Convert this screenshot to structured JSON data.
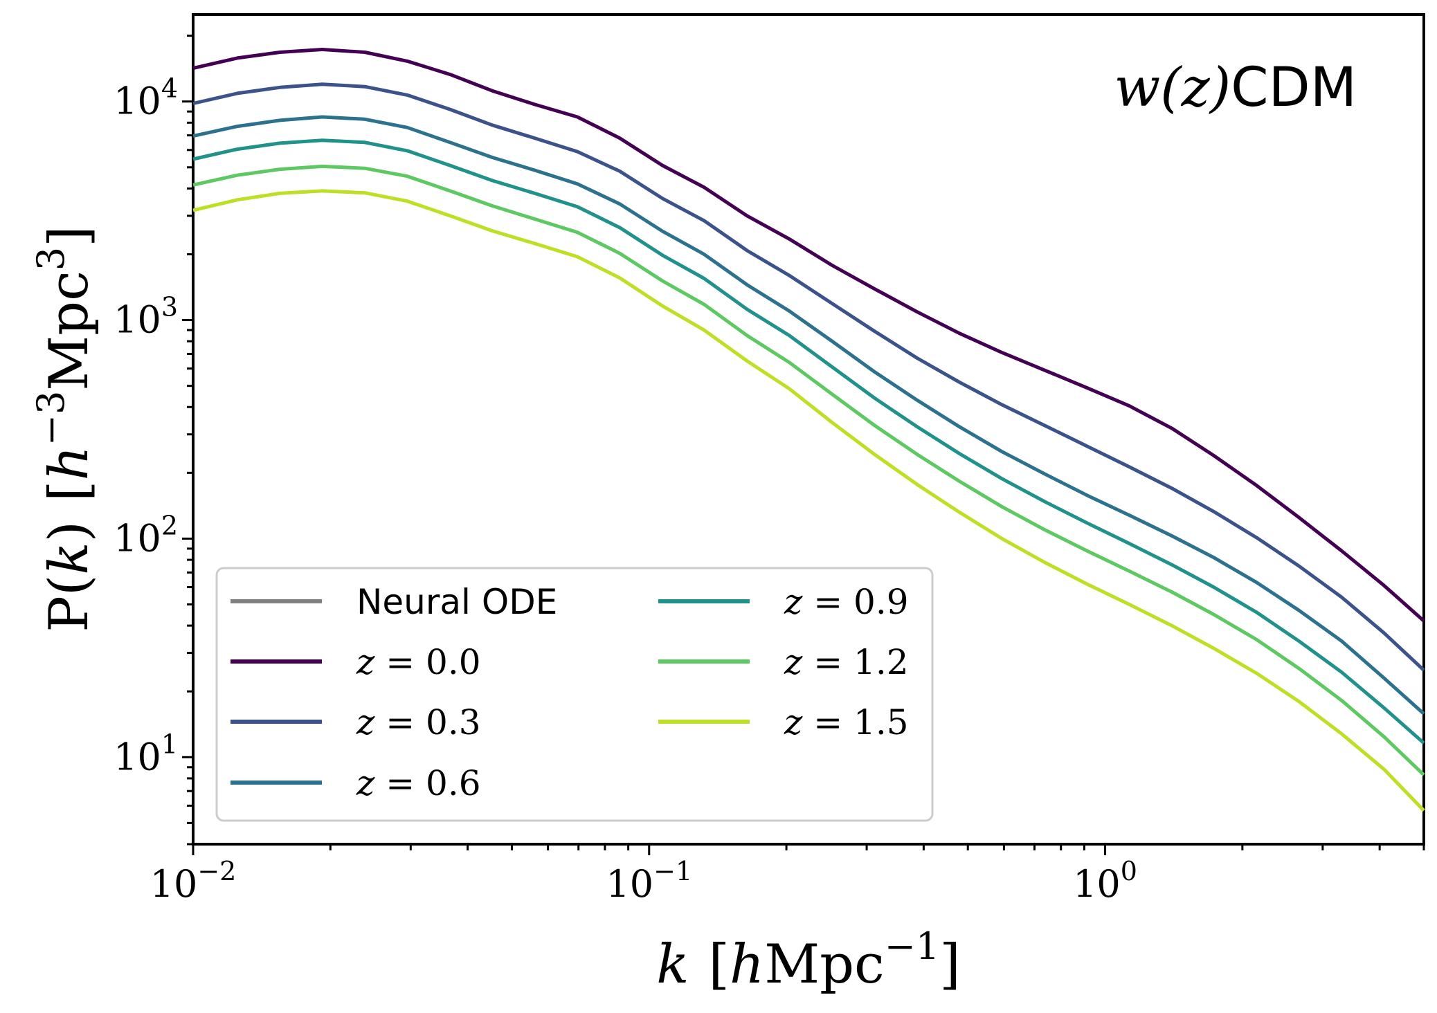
{
  "chart_data": {
    "type": "line",
    "title": "",
    "annotation": {
      "prefix": "w(z)",
      "suffix": "CDM"
    },
    "xlabel": {
      "var": "k",
      "open": "[",
      "unit_it": "h",
      "unit": "Mpc",
      "exp": "−1",
      "close": "]"
    },
    "ylabel": {
      "func": "P(",
      "var": "k",
      "func_close": ")",
      "open": "[",
      "unit_it": "h",
      "exp1": "−3",
      "unit": "Mpc",
      "exp2": "3",
      "close": "]"
    },
    "xscale": "log",
    "yscale": "log",
    "xlim": [
      0.01,
      5.0
    ],
    "ylim": [
      4.0,
      25000
    ],
    "x_ticks": [
      {
        "value": 0.01,
        "base": "10",
        "exp": "−2"
      },
      {
        "value": 0.1,
        "base": "10",
        "exp": "−1"
      },
      {
        "value": 1.0,
        "base": "10",
        "exp": "0"
      }
    ],
    "y_ticks": [
      {
        "value": 10,
        "base": "10",
        "exp": "1"
      },
      {
        "value": 100,
        "base": "10",
        "exp": "2"
      },
      {
        "value": 1000,
        "base": "10",
        "exp": "3"
      },
      {
        "value": 10000,
        "base": "10",
        "exp": "4"
      }
    ],
    "grid": false,
    "legend_position": "lower-left",
    "legend": {
      "method": {
        "label": "Neural ODE",
        "color": "#808080"
      },
      "z_prefix": "z",
      "z_eq": " = "
    },
    "x": [
      0.01,
      0.0125,
      0.0155,
      0.0192,
      0.0238,
      0.0295,
      0.0366,
      0.0453,
      0.0561,
      0.0696,
      0.0862,
      0.107,
      0.132,
      0.164,
      0.203,
      0.252,
      0.312,
      0.387,
      0.479,
      0.594,
      0.736,
      0.912,
      1.13,
      1.4,
      1.73,
      2.15,
      2.66,
      3.3,
      4.09,
      5.0
    ],
    "series": [
      {
        "name": "0.0",
        "color": "#440154",
        "values": [
          14200,
          15800,
          16800,
          17300,
          16800,
          15300,
          13300,
          11200,
          9700,
          8500,
          6800,
          5100,
          4050,
          3000,
          2350,
          1780,
          1390,
          1090,
          870,
          710,
          590,
          490,
          405,
          320,
          240,
          175,
          125,
          88,
          61,
          42
        ]
      },
      {
        "name": "0.3",
        "color": "#3b528b",
        "values": [
          9800,
          10900,
          11600,
          12000,
          11700,
          10700,
          9200,
          7800,
          6800,
          5900,
          4800,
          3600,
          2850,
          2080,
          1600,
          1190,
          890,
          670,
          520,
          410,
          330,
          265,
          213,
          170,
          133,
          101,
          75,
          54,
          37,
          25
        ]
      },
      {
        "name": "0.6",
        "color": "#2c728e",
        "values": [
          6950,
          7700,
          8200,
          8500,
          8300,
          7600,
          6500,
          5550,
          4850,
          4200,
          3400,
          2550,
          2000,
          1450,
          1100,
          800,
          580,
          430,
          325,
          250,
          198,
          158,
          128,
          103,
          82,
          63,
          47,
          34,
          23,
          15.8
        ]
      },
      {
        "name": "0.9",
        "color": "#21918c",
        "values": [
          5450,
          6050,
          6450,
          6650,
          6500,
          5950,
          5100,
          4350,
          3800,
          3300,
          2650,
          1980,
          1550,
          1120,
          850,
          610,
          440,
          325,
          245,
          188,
          148,
          118,
          95,
          76,
          60,
          46,
          34,
          24.5,
          16.8,
          11.6
        ]
      },
      {
        "name": "1.2",
        "color": "#5ec962",
        "values": [
          4150,
          4600,
          4900,
          5050,
          4950,
          4550,
          3900,
          3330,
          2900,
          2520,
          2020,
          1510,
          1180,
          850,
          640,
          458,
          330,
          243,
          183,
          140,
          110,
          88,
          71,
          57,
          45,
          34.5,
          25.5,
          18.2,
          12.4,
          8.3
        ]
      },
      {
        "name": "1.5",
        "color": "#bddf26",
        "values": [
          3180,
          3550,
          3800,
          3900,
          3820,
          3500,
          3000,
          2560,
          2240,
          1950,
          1560,
          1160,
          900,
          650,
          485,
          340,
          243,
          177,
          132,
          100,
          78,
          62,
          50,
          40,
          31.5,
          24.2,
          18,
          12.8,
          8.8,
          5.7
        ]
      }
    ]
  }
}
